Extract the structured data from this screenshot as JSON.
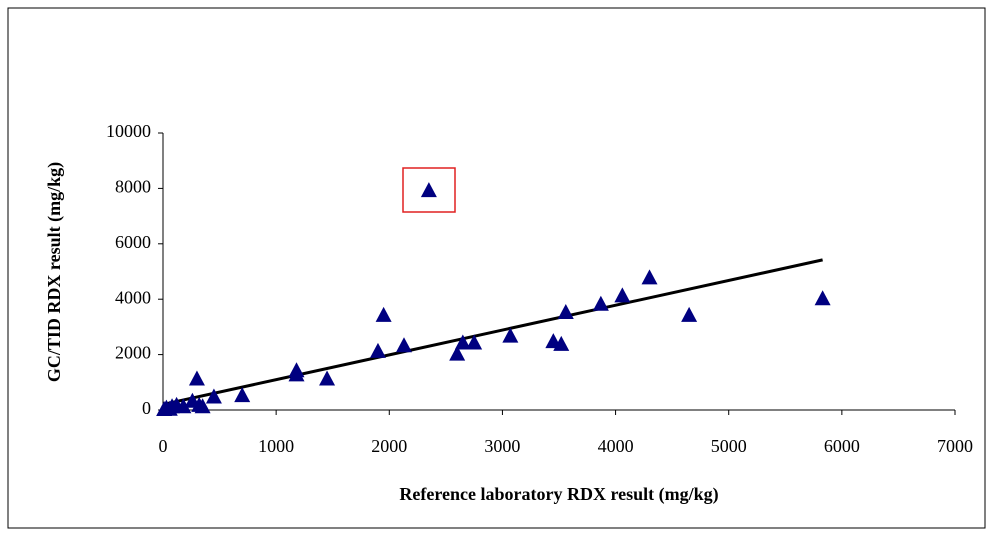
{
  "chart_data": {
    "type": "scatter",
    "xlabel": "Reference laboratory RDX result (mg/kg)",
    "ylabel": "GC/TID RDX result (mg/kg)",
    "xlim": [
      0,
      7000
    ],
    "xticks": [
      0,
      1000,
      2000,
      3000,
      4000,
      5000,
      6000,
      7000
    ],
    "ylim": [
      0,
      10000
    ],
    "yticks": [
      0,
      2000,
      4000,
      6000,
      8000,
      10000
    ],
    "series": [
      {
        "type": "scatter",
        "color": "#000080",
        "x": [
          10,
          30,
          60,
          80,
          120,
          180,
          260,
          300,
          320,
          350,
          450,
          700,
          1180,
          1180,
          1450,
          1900,
          1950,
          2130,
          2350,
          2600,
          2650,
          2750,
          3070,
          3450,
          3520,
          3560,
          3870,
          4060,
          4300,
          4650,
          5830
        ],
        "values": [
          0,
          50,
          10,
          100,
          150,
          100,
          300,
          1100,
          150,
          100,
          450,
          500,
          1400,
          1250,
          1100,
          2100,
          3400,
          2300,
          7900,
          2000,
          2400,
          2400,
          2650,
          2450,
          2350,
          3500,
          3800,
          4100,
          4750,
          3400,
          4000
        ]
      },
      {
        "type": "line",
        "color": "#000000",
        "x": [
          0,
          5830
        ],
        "values": [
          200,
          5420
        ]
      }
    ]
  }
}
